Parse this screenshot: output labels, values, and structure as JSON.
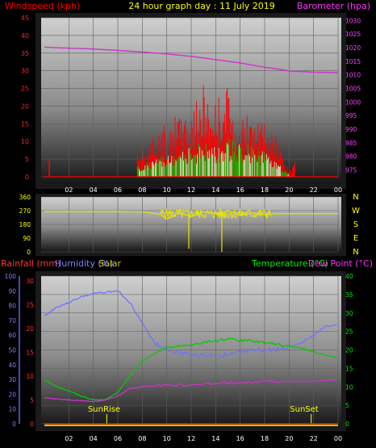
{
  "header": {
    "windspeed_label": "Windspeed (kph)",
    "title": "24 hour graph day : 11 July 2019",
    "barometer_label": "Barometer (hpa)"
  },
  "bottom_header": {
    "rainfall_label": "Rainfall (mm)",
    "humidity_label": "Humidity (%)",
    "solar_label": "Solar",
    "temperature_label": "Temperature (°C)",
    "dewpoint_label": "Dew Point (°C)"
  },
  "sun": {
    "rise_label": "SunRise",
    "set_label": "SunSet"
  },
  "colors": {
    "wind": "#ff0000",
    "gust": "#00cc00",
    "barometer": "#cc33cc",
    "direction": "#e6e600",
    "humidity": "#7070ff",
    "temperature": "#00cc00",
    "dewpoint": "#cc33cc",
    "rain": "#ffff00",
    "frame": "#1a1a1a"
  },
  "chart_data": [
    {
      "type": "line",
      "name": "wind-barometer",
      "x_ticks": [
        "02",
        "04",
        "06",
        "08",
        "10",
        "12",
        "14",
        "16",
        "18",
        "20",
        "22",
        "00"
      ],
      "ylabel_left": "Windspeed (kph)",
      "ylabel_right": "Barometer (hpa)",
      "left_ticks": [
        0,
        5,
        10,
        15,
        20,
        25,
        30,
        35,
        40,
        45
      ],
      "right_ticks": [
        975,
        980,
        985,
        990,
        995,
        1000,
        1005,
        1010,
        1015,
        1020,
        1025,
        1030
      ],
      "ylim_left": [
        0,
        45
      ],
      "ylim_right": [
        972.5,
        1031
      ],
      "series": [
        {
          "name": "Barometer",
          "x": [
            0,
            2,
            4,
            6,
            8,
            10,
            12,
            14,
            16,
            18,
            19,
            20,
            22,
            24
          ],
          "y": [
            1020.2,
            1019.8,
            1019.5,
            1019.0,
            1018.4,
            1017.7,
            1016.8,
            1015.6,
            1014.4,
            1012.8,
            1012.2,
            1011.4,
            1011.0,
            1010.8
          ]
        },
        {
          "name": "Windspeed",
          "x": [
            0.4,
            7.6,
            8.5,
            9.5,
            10.5,
            11.5,
            12.5,
            13,
            13.5,
            14.5,
            15,
            15.5,
            16.5,
            17.5,
            18.5,
            19.5,
            20,
            20.5
          ],
          "y": [
            5,
            8,
            11,
            14,
            17,
            18,
            22,
            28,
            20,
            25,
            26,
            19,
            18,
            16,
            14,
            9,
            2,
            5
          ]
        },
        {
          "name": "Gust",
          "x": [
            7.6,
            9,
            11,
            13,
            14,
            15,
            16,
            17,
            18,
            19,
            20
          ],
          "y": [
            3,
            5,
            7,
            10,
            9,
            11,
            10,
            9,
            7,
            4,
            1
          ]
        }
      ]
    },
    {
      "type": "line",
      "name": "wind-direction",
      "x_ticks": [
        "02",
        "04",
        "06",
        "08",
        "10",
        "12",
        "14",
        "16",
        "18",
        "20",
        "22",
        "00"
      ],
      "y_ticks": [
        0,
        90,
        180,
        270,
        360
      ],
      "right_labels": [
        "N",
        "W",
        "S",
        "E",
        "N"
      ],
      "ylim": [
        0,
        360
      ],
      "series": [
        {
          "name": "Direction",
          "x": [
            0,
            4,
            6,
            8,
            9.5,
            10,
            11,
            12,
            13,
            14,
            15,
            16,
            17,
            18,
            19,
            20,
            22,
            24
          ],
          "y": [
            265,
            265,
            265,
            263,
            245,
            215,
            255,
            232,
            265,
            250,
            270,
            240,
            255,
            245,
            250,
            250,
            250,
            250
          ]
        }
      ]
    },
    {
      "type": "line",
      "name": "humidity-temperature",
      "x_ticks": [
        "02",
        "04",
        "06",
        "08",
        "10",
        "12",
        "14",
        "16",
        "18",
        "20",
        "22",
        "00"
      ],
      "left_ticks_rain": [
        0,
        5,
        10,
        15,
        20,
        25,
        30
      ],
      "left_ticks_humidity": [
        0,
        10,
        20,
        30,
        40,
        50,
        60,
        70,
        80,
        90,
        100
      ],
      "right_ticks": [
        0,
        5,
        10,
        15,
        20,
        25,
        30,
        35,
        40
      ],
      "ylim_rain": [
        0,
        31
      ],
      "ylim_humidity": [
        0,
        100
      ],
      "ylim_temp": [
        0,
        40
      ],
      "series": [
        {
          "name": "Humidity",
          "x": [
            0,
            1,
            2,
            3,
            4,
            5,
            6,
            7,
            8,
            9,
            10,
            11,
            12,
            13,
            14,
            15,
            16,
            17,
            18,
            19,
            20,
            21,
            22,
            23,
            24
          ],
          "y": [
            73,
            79,
            82,
            86,
            88,
            89,
            90,
            82,
            68,
            55,
            50,
            48,
            47,
            46,
            47,
            46,
            48,
            49,
            50,
            50,
            52,
            55,
            60,
            66,
            67
          ]
        },
        {
          "name": "Temperature",
          "x": [
            0,
            1,
            2,
            3,
            4,
            5,
            6,
            7,
            8,
            9,
            10,
            11,
            12,
            13,
            14,
            15,
            16,
            17,
            18,
            19,
            20,
            21,
            22,
            23,
            24
          ],
          "y": [
            12,
            10,
            9,
            7.5,
            6.5,
            6.5,
            8.5,
            13,
            17,
            19,
            20.5,
            21,
            21.5,
            22,
            22.5,
            23,
            22.5,
            22.5,
            22,
            21.5,
            21,
            20.5,
            19.5,
            18.5,
            18
          ]
        },
        {
          "name": "Dew Point",
          "x": [
            0,
            2,
            4,
            5,
            6,
            7,
            8,
            10,
            12,
            14,
            16,
            18,
            20,
            22,
            24
          ],
          "y": [
            7,
            6.5,
            6,
            6.5,
            7.5,
            9.5,
            10,
            10.5,
            10.5,
            11,
            11,
            11.5,
            11.5,
            11.5,
            12
          ]
        }
      ]
    }
  ]
}
